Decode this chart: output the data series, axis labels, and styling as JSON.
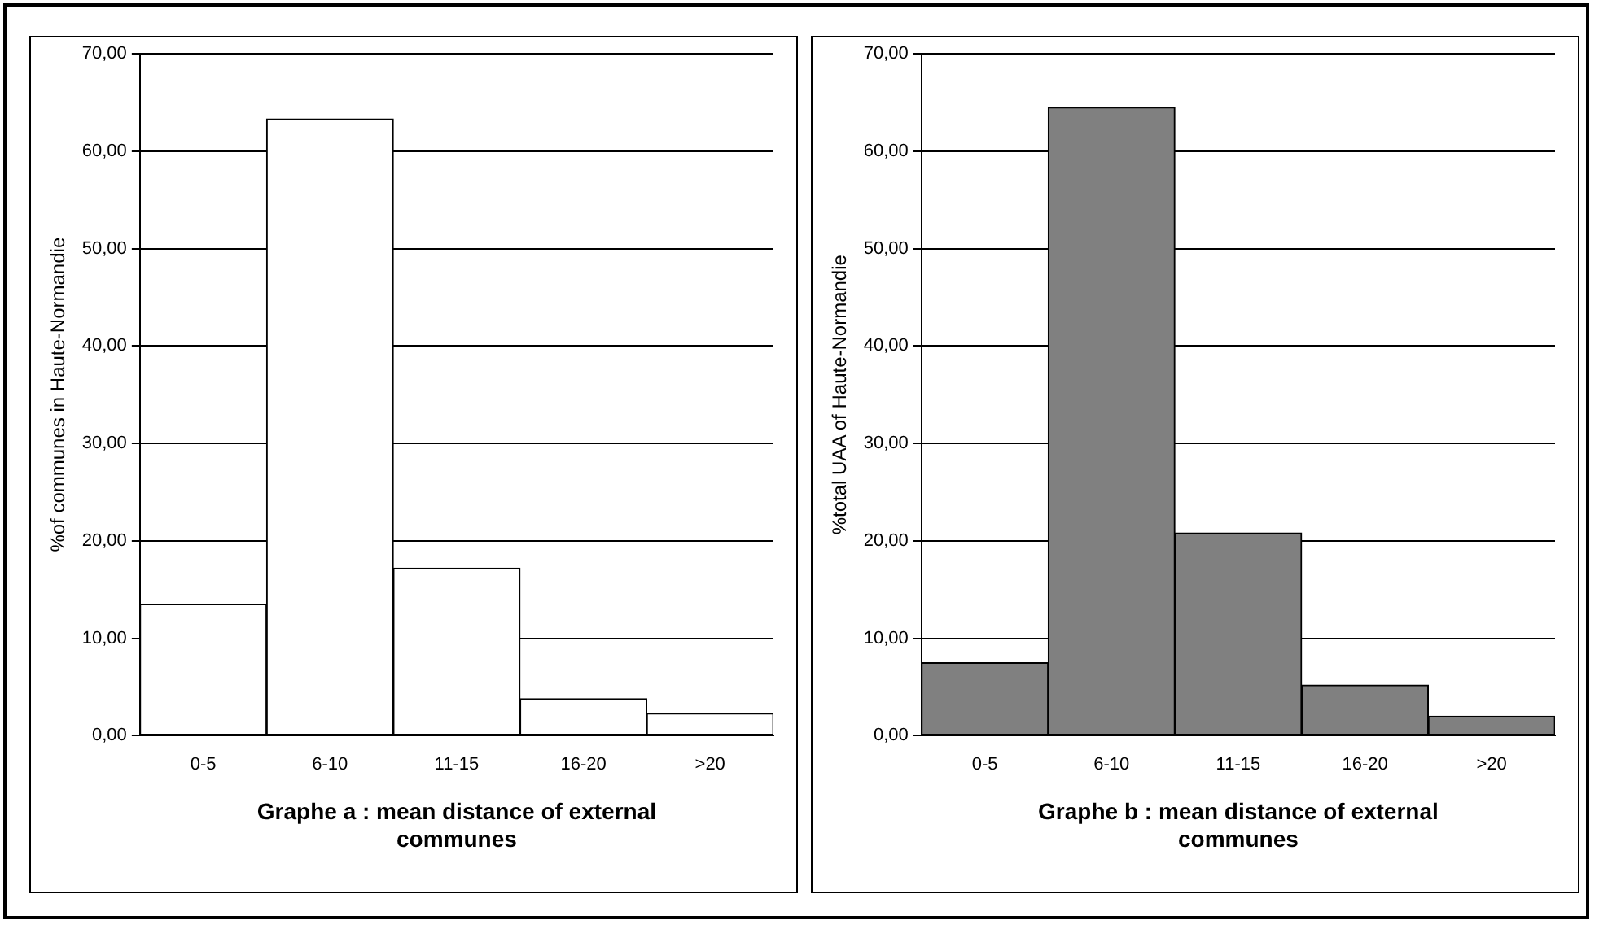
{
  "chart_data": [
    {
      "type": "bar",
      "xlabel": "Graphe a : mean distance of external communes",
      "ylabel": "%of communes in Haute-Normandie",
      "categories": [
        "0-5",
        "6-10",
        "11-15",
        "16-20",
        ">20"
      ],
      "series": [
        {
          "color": "#ffffff",
          "values": [
            13.5,
            63.3,
            17.2,
            3.8,
            2.3
          ]
        }
      ],
      "ylim": [
        0,
        70
      ],
      "yticks": [
        {
          "value": 0,
          "label": "0,00"
        },
        {
          "value": 10,
          "label": "10,00"
        },
        {
          "value": 20,
          "label": "20,00"
        },
        {
          "value": 30,
          "label": "30,00"
        },
        {
          "value": 40,
          "label": "40,00"
        },
        {
          "value": 50,
          "label": "50,00"
        },
        {
          "value": 60,
          "label": "60,00"
        },
        {
          "value": 70,
          "label": "70,00"
        }
      ],
      "grid": "y",
      "legend": false
    },
    {
      "type": "bar",
      "xlabel": "Graphe b : mean distance of external communes",
      "ylabel": "%total UAA of Haute-Normandie",
      "categories": [
        "0-5",
        "6-10",
        "11-15",
        "16-20",
        ">20"
      ],
      "series": [
        {
          "color": "#808080",
          "values": [
            7.5,
            64.5,
            20.8,
            5.2,
            2.0
          ]
        }
      ],
      "ylim": [
        0,
        70
      ],
      "yticks": [
        {
          "value": 0,
          "label": "0,00"
        },
        {
          "value": 10,
          "label": "10,00"
        },
        {
          "value": 20,
          "label": "20,00"
        },
        {
          "value": 30,
          "label": "30,00"
        },
        {
          "value": 40,
          "label": "40,00"
        },
        {
          "value": 50,
          "label": "50,00"
        },
        {
          "value": 60,
          "label": "60,00"
        },
        {
          "value": 70,
          "label": "70,00"
        }
      ],
      "grid": "y",
      "legend": false
    }
  ]
}
